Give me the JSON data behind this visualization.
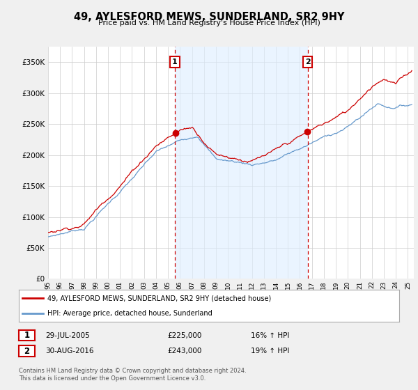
{
  "title": "49, AYLESFORD MEWS, SUNDERLAND, SR2 9HY",
  "subtitle": "Price paid vs. HM Land Registry's House Price Index (HPI)",
  "ytick_values": [
    0,
    50000,
    100000,
    150000,
    200000,
    250000,
    300000,
    350000
  ],
  "ylim": [
    0,
    375000
  ],
  "xlim_start": 1995.0,
  "xlim_end": 2025.5,
  "red_line_color": "#cc0000",
  "blue_line_color": "#6699cc",
  "blue_fill_color": "#ddeeff",
  "marker1_year": 2005.57,
  "marker1_value": 225000,
  "marker2_year": 2016.66,
  "marker2_value": 243000,
  "legend_label_red": "49, AYLESFORD MEWS, SUNDERLAND, SR2 9HY (detached house)",
  "legend_label_blue": "HPI: Average price, detached house, Sunderland",
  "table_row1_num": "1",
  "table_row1_date": "29-JUL-2005",
  "table_row1_price": "£225,000",
  "table_row1_hpi": "16% ↑ HPI",
  "table_row2_num": "2",
  "table_row2_date": "30-AUG-2016",
  "table_row2_price": "£243,000",
  "table_row2_hpi": "19% ↑ HPI",
  "footer": "Contains HM Land Registry data © Crown copyright and database right 2024.\nThis data is licensed under the Open Government Licence v3.0.",
  "bg_color": "#f0f0f0",
  "plot_bg_color": "#ffffff",
  "grid_color": "#cccccc"
}
